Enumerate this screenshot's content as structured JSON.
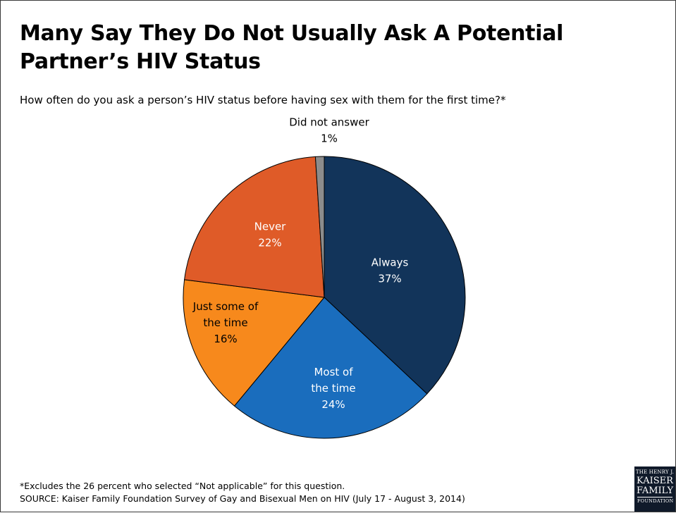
{
  "title": "Many Say They Do Not Usually Ask A Potential Partner’s HIV Status",
  "subtitle": "How often do you ask a person’s HIV status before having sex with them for the first time?*",
  "chart_data": {
    "type": "pie",
    "start_angle_deg": 0,
    "direction": "clockwise",
    "slices": [
      {
        "label_lines": [
          "Always"
        ],
        "value": 37,
        "value_label": "37%",
        "color": "#12345a",
        "label_color": "#ffffff"
      },
      {
        "label_lines": [
          "Most of",
          "the time"
        ],
        "value": 24,
        "value_label": "24%",
        "color": "#1a6dbd",
        "label_color": "#ffffff"
      },
      {
        "label_lines": [
          "Just some of",
          "the time"
        ],
        "value": 16,
        "value_label": "16%",
        "color": "#f7891c",
        "label_color": "#000000"
      },
      {
        "label_lines": [
          "Never"
        ],
        "value": 22,
        "value_label": "22%",
        "color": "#df5b28",
        "label_color": "#ffffff"
      },
      {
        "label_lines": [
          "Did not answer"
        ],
        "value": 1,
        "value_label": "1%",
        "color": "#8c8c8c",
        "label_color": "#000000",
        "label_outside": true
      }
    ]
  },
  "footnote": {
    "line1": "*Excludes the 26 percent who selected “Not applicable” for this question.",
    "line2": "SOURCE: Kaiser Family Foundation Survey of Gay and Bisexual Men on HIV (July 17 - August 3, 2014)"
  },
  "logo": {
    "line1": "THE HENRY J.",
    "line2": "KAISER",
    "line3": "FAMILY",
    "line4": "FOUNDATION"
  }
}
